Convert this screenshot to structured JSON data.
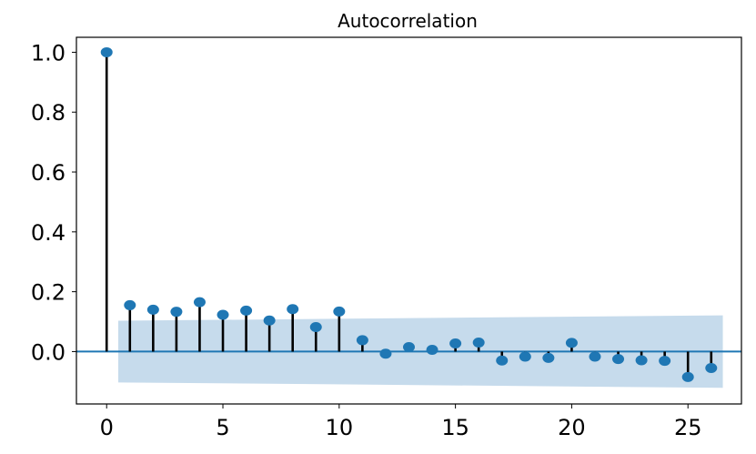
{
  "chart_data": {
    "type": "stem",
    "title": "Autocorrelation",
    "xlabel": "",
    "ylabel": "",
    "xlim": [
      -1.3,
      27.3
    ],
    "ylim": [
      -0.175,
      1.05
    ],
    "x_ticks": [
      0,
      5,
      10,
      15,
      20,
      25
    ],
    "y_ticks": [
      0.0,
      0.2,
      0.4,
      0.6,
      0.8,
      1.0
    ],
    "y_tick_labels": [
      "0.0",
      "0.2",
      "0.4",
      "0.6",
      "0.8",
      "1.0"
    ],
    "grid": false,
    "lags": [
      0,
      1,
      2,
      3,
      4,
      5,
      6,
      7,
      8,
      9,
      10,
      11,
      12,
      13,
      14,
      15,
      16,
      17,
      18,
      19,
      20,
      21,
      22,
      23,
      24,
      25,
      26
    ],
    "acf": [
      1.0,
      0.155,
      0.14,
      0.133,
      0.165,
      0.123,
      0.137,
      0.104,
      0.142,
      0.082,
      0.134,
      0.038,
      -0.007,
      0.015,
      0.006,
      0.027,
      0.03,
      -0.03,
      -0.017,
      -0.021,
      0.029,
      -0.017,
      -0.025,
      -0.029,
      -0.031,
      -0.085,
      -0.055
    ],
    "confidence_band": {
      "x": [
        0.5,
        26.5
      ],
      "upper": [
        0.103,
        0.121
      ],
      "lower": [
        -0.103,
        -0.121
      ]
    },
    "colors": {
      "marker": "#1f77b4",
      "stem": "#000000",
      "zero_line": "#1f77b4",
      "band": "#c6dbec"
    }
  }
}
